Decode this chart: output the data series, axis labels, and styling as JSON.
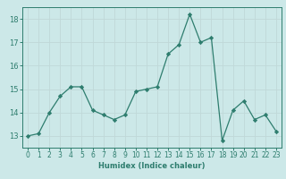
{
  "x": [
    0,
    1,
    2,
    3,
    4,
    5,
    6,
    7,
    8,
    9,
    10,
    11,
    12,
    13,
    14,
    15,
    16,
    17,
    18,
    19,
    20,
    21,
    22,
    23
  ],
  "y": [
    13.0,
    13.1,
    14.0,
    14.7,
    15.1,
    15.1,
    14.1,
    13.9,
    13.7,
    13.9,
    14.9,
    15.0,
    15.1,
    16.5,
    16.9,
    18.2,
    17.0,
    17.2,
    12.8,
    14.1,
    14.5,
    13.7,
    13.9,
    13.2
  ],
  "line_color": "#2e7d6e",
  "marker": "D",
  "marker_size": 2.2,
  "bg_color": "#cce8e8",
  "grid_color": "#c0d8d8",
  "xlabel": "Humidex (Indice chaleur)",
  "xlim": [
    -0.5,
    23.5
  ],
  "ylim": [
    12.5,
    18.5
  ],
  "yticks": [
    13,
    14,
    15,
    16,
    17,
    18
  ],
  "xticks": [
    0,
    1,
    2,
    3,
    4,
    5,
    6,
    7,
    8,
    9,
    10,
    11,
    12,
    13,
    14,
    15,
    16,
    17,
    18,
    19,
    20,
    21,
    22,
    23
  ],
  "xlabel_fontsize": 6.0,
  "tick_fontsize": 5.5,
  "ytick_fontsize": 6.0
}
